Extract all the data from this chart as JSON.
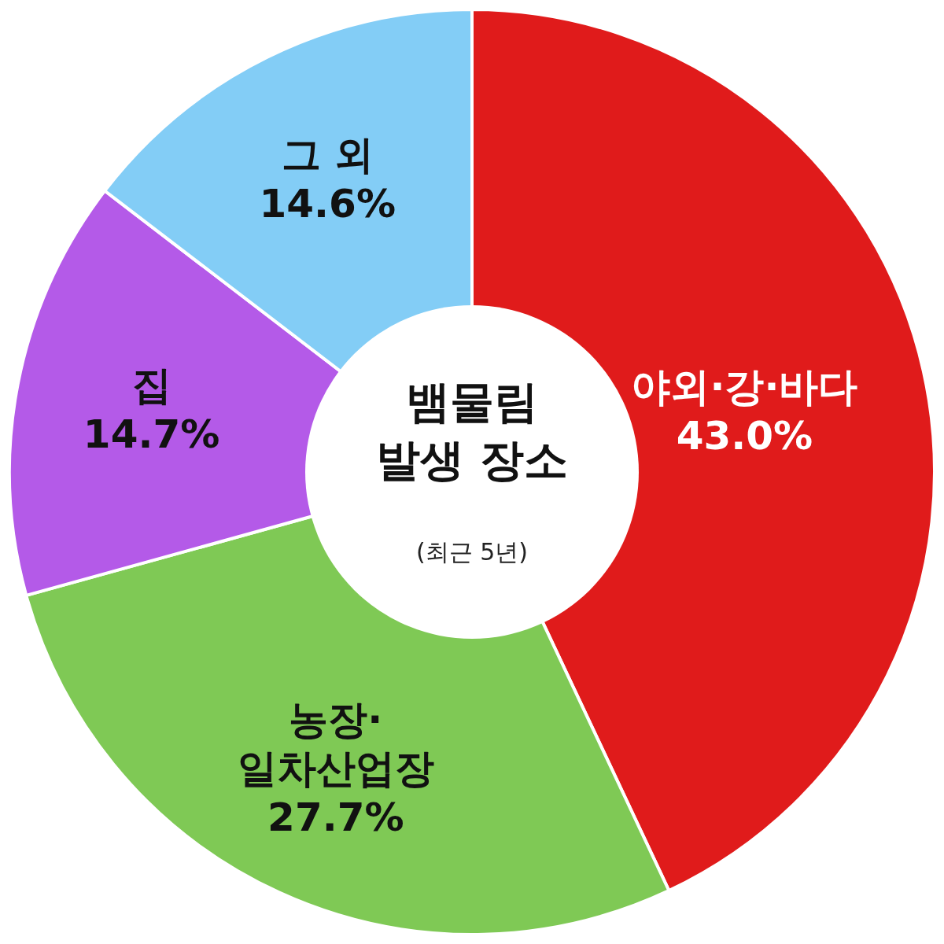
{
  "chart_data": {
    "type": "donut",
    "title": "뱀물림 발생 장소",
    "subtitle": "(최근 5년)",
    "categories": [
      "야외·강·바다",
      "농장·\n일차산업장",
      "집",
      "그 외"
    ],
    "values": [
      43.0,
      27.7,
      14.7,
      14.6
    ],
    "colors": [
      "#e01b1b",
      "#7fc955",
      "#b45ae8",
      "#83cdf6"
    ],
    "value_labels": [
      "43.0%",
      "27.7%",
      "14.7%",
      "14.6%"
    ]
  }
}
